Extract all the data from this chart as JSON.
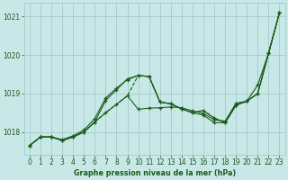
{
  "title": "Graphe pression niveau de la mer (hPa)",
  "bg_color": "#c8e8e8",
  "grid_color": "#a8d0ce",
  "line_color": "#1a5c1a",
  "x_min": -0.5,
  "x_max": 23.5,
  "y_min": 1017.4,
  "y_max": 1021.35,
  "y_ticks": [
    1018,
    1019,
    1020,
    1021
  ],
  "x_ticks": [
    0,
    1,
    2,
    3,
    4,
    5,
    6,
    7,
    8,
    9,
    10,
    11,
    12,
    13,
    14,
    15,
    16,
    17,
    18,
    19,
    20,
    21,
    22,
    23
  ],
  "series": [
    {
      "data": [
        1017.65,
        1017.87,
        1017.87,
        1017.78,
        1017.87,
        1018.0,
        1018.26,
        1018.5,
        1018.72,
        1018.94,
        1018.59,
        1018.62,
        1018.63,
        1018.65,
        1018.63,
        1018.55,
        1018.48,
        1018.32,
        1018.28,
        1018.75,
        1018.8,
        1019.22,
        1020.05,
        1021.1
      ],
      "linestyle": "-",
      "marker": true
    },
    {
      "data": [
        1017.65,
        1017.87,
        1017.87,
        1017.78,
        1017.87,
        1018.0,
        1018.26,
        1018.82,
        1019.1,
        1019.38,
        1019.47,
        1019.44,
        1018.78,
        1018.73,
        1018.6,
        1018.5,
        1018.44,
        1018.24,
        1018.24,
        1018.7,
        1018.8,
        1019.0,
        1020.05,
        1021.1
      ],
      "linestyle": "-",
      "marker": true
    },
    {
      "data": [
        1017.65,
        1017.87,
        1017.87,
        1017.8,
        1017.9,
        1018.05,
        1018.35,
        1018.88,
        1019.14,
        1019.36,
        1019.47,
        1019.44,
        1018.78,
        1018.73,
        1018.6,
        1018.5,
        1018.56,
        1018.36,
        1018.24,
        1018.7,
        1018.8,
        1019.0,
        1020.05,
        1021.1
      ],
      "linestyle": "-",
      "marker": true
    },
    {
      "data": [
        1017.65,
        1017.87,
        1017.87,
        1017.78,
        1017.87,
        1018.0,
        1018.26,
        1018.5,
        1018.72,
        1018.94,
        1019.47,
        1019.44,
        1018.78,
        1018.73,
        1018.6,
        1018.5,
        1018.56,
        1018.36,
        1018.24,
        1018.7,
        1018.8,
        1019.0,
        1020.05,
        1021.1
      ],
      "linestyle": "--",
      "marker": false
    }
  ]
}
